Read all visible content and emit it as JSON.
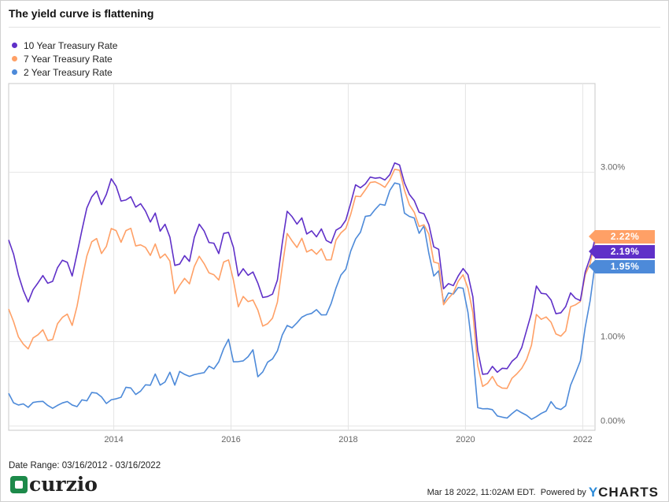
{
  "title": "The yield curve is flattening",
  "colors": {
    "ten_year": "#5f30c8",
    "seven_year": "#ffa066",
    "two_year": "#4d8ad9"
  },
  "chart_data": {
    "type": "line",
    "x_start": "2012-03",
    "frequency": "monthly",
    "x_ticks": [
      "2014",
      "2016",
      "2018",
      "2020",
      "2022"
    ],
    "y_ticks": [
      "0.00%",
      "1.00%",
      "3.00%"
    ],
    "ylim": [
      -0.05,
      4.05
    ],
    "y_axis_side": "right",
    "grid": true,
    "legend_position": "top-left",
    "series": [
      {
        "name": "10 Year Treasury Rate",
        "last_label": "2.19%",
        "values": [
          2.2,
          2.0,
          1.75,
          1.6,
          1.5,
          1.65,
          1.7,
          1.75,
          1.65,
          1.7,
          1.9,
          2.0,
          1.95,
          1.75,
          2.0,
          2.3,
          2.6,
          2.75,
          2.8,
          2.6,
          2.7,
          2.9,
          2.85,
          2.7,
          2.7,
          2.7,
          2.55,
          2.6,
          2.55,
          2.45,
          2.55,
          2.3,
          2.35,
          2.2,
          1.9,
          1.95,
          2.05,
          1.95,
          2.2,
          2.35,
          2.3,
          2.2,
          2.2,
          2.05,
          2.25,
          2.25,
          2.1,
          1.8,
          1.9,
          1.8,
          1.8,
          1.65,
          1.5,
          1.55,
          1.6,
          1.75,
          2.15,
          2.5,
          2.45,
          2.4,
          2.5,
          2.3,
          2.3,
          2.2,
          2.3,
          2.2,
          2.2,
          2.35,
          2.35,
          2.4,
          2.6,
          2.85,
          2.85,
          2.9,
          2.95,
          2.9,
          2.9,
          2.9,
          3.0,
          3.15,
          3.1,
          2.85,
          2.7,
          2.65,
          2.55,
          2.55,
          2.4,
          2.1,
          2.05,
          1.6,
          1.7,
          1.7,
          1.8,
          1.85,
          1.75,
          1.5,
          0.9,
          0.65,
          0.65,
          0.7,
          0.6,
          0.65,
          0.68,
          0.8,
          0.85,
          0.93,
          1.1,
          1.3,
          1.65,
          1.6,
          1.6,
          1.5,
          1.3,
          1.3,
          1.4,
          1.6,
          1.55,
          1.5,
          1.8,
          1.95,
          2.19
        ]
      },
      {
        "name": "7 Year Treasury Rate",
        "last_label": "2.22%",
        "values": [
          1.35,
          1.2,
          1.05,
          1.0,
          0.95,
          1.05,
          1.05,
          1.1,
          1.0,
          1.05,
          1.25,
          1.3,
          1.3,
          1.15,
          1.4,
          1.75,
          2.05,
          2.2,
          2.2,
          2.0,
          2.1,
          2.35,
          2.35,
          2.2,
          2.3,
          2.3,
          2.1,
          2.15,
          2.15,
          2.05,
          2.15,
          1.95,
          2.0,
          1.95,
          1.6,
          1.7,
          1.75,
          1.65,
          1.85,
          2.0,
          1.95,
          1.85,
          1.8,
          1.7,
          1.9,
          1.95,
          1.75,
          1.45,
          1.55,
          1.45,
          1.45,
          1.35,
          1.2,
          1.25,
          1.3,
          1.45,
          1.85,
          2.25,
          2.2,
          2.15,
          2.25,
          2.05,
          2.05,
          2.0,
          2.1,
          2.0,
          2.0,
          2.2,
          2.25,
          2.3,
          2.5,
          2.75,
          2.75,
          2.8,
          2.85,
          2.85,
          2.85,
          2.85,
          2.95,
          3.05,
          3.0,
          2.75,
          2.6,
          2.55,
          2.4,
          2.4,
          2.25,
          1.9,
          1.9,
          1.45,
          1.55,
          1.6,
          1.7,
          1.75,
          1.6,
          1.35,
          0.75,
          0.5,
          0.5,
          0.55,
          0.45,
          0.45,
          0.48,
          0.6,
          0.62,
          0.65,
          0.75,
          0.95,
          1.35,
          1.3,
          1.3,
          1.2,
          1.05,
          1.05,
          1.15,
          1.45,
          1.45,
          1.45,
          1.75,
          1.9,
          2.22
        ]
      },
      {
        "name": "2 Year Treasury Rate",
        "last_label": "1.95%",
        "values": [
          0.35,
          0.27,
          0.28,
          0.3,
          0.23,
          0.25,
          0.25,
          0.28,
          0.27,
          0.25,
          0.26,
          0.25,
          0.25,
          0.23,
          0.25,
          0.35,
          0.32,
          0.38,
          0.35,
          0.32,
          0.28,
          0.35,
          0.35,
          0.33,
          0.42,
          0.42,
          0.38,
          0.45,
          0.52,
          0.48,
          0.58,
          0.45,
          0.52,
          0.67,
          0.52,
          0.65,
          0.58,
          0.55,
          0.6,
          0.65,
          0.67,
          0.72,
          0.65,
          0.72,
          0.9,
          1.05,
          0.8,
          0.78,
          0.75,
          0.78,
          0.88,
          0.6,
          0.68,
          0.78,
          0.78,
          0.85,
          1.05,
          1.2,
          1.2,
          1.25,
          1.28,
          1.28,
          1.3,
          1.38,
          1.35,
          1.35,
          1.45,
          1.6,
          1.75,
          1.85,
          2.1,
          2.25,
          2.3,
          2.45,
          2.45,
          2.55,
          2.65,
          2.65,
          2.8,
          2.85,
          2.82,
          2.5,
          2.5,
          2.5,
          2.3,
          2.35,
          2.0,
          1.75,
          1.85,
          1.5,
          1.6,
          1.55,
          1.6,
          1.6,
          1.35,
          0.9,
          0.25,
          0.2,
          0.17,
          0.16,
          0.12,
          0.14,
          0.13,
          0.15,
          0.16,
          0.12,
          0.12,
          0.11,
          0.15,
          0.16,
          0.15,
          0.25,
          0.2,
          0.22,
          0.28,
          0.5,
          0.6,
          0.73,
          1.15,
          1.5,
          1.95
        ]
      }
    ]
  },
  "footer": {
    "date_range": "Date Range: 03/16/2012 - 03/16/2022",
    "logo_text": "curzio",
    "timestamp": "Mar 18 2022, 11:02AM EDT.",
    "powered_by": "Powered by",
    "brand_y": "Y",
    "brand_rest": "CHARTS"
  }
}
